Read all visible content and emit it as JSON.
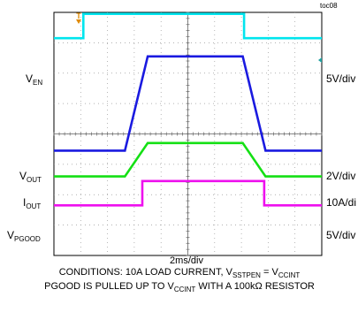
{
  "figure_tag": "toc08",
  "chart_data": {
    "type": "line",
    "title": "",
    "xlabel": "2ms/div",
    "x_divisions": 10,
    "y_divisions": 8,
    "grid": true,
    "trigger_marker": "T",
    "series": [
      {
        "name": "EN",
        "name_prefix": "V",
        "name_sub": "EN",
        "scale": "5V/div",
        "color": "#00e5ee",
        "x": [
          0,
          1.1,
          1.1,
          7.1,
          7.1,
          10
        ],
        "y": [
          7.15,
          7.15,
          7.95,
          7.95,
          7.15,
          7.15
        ]
      },
      {
        "name": "OUT",
        "name_prefix": "V",
        "name_sub": "OUT",
        "scale": "2V/div",
        "color": "#1a1ae0",
        "x": [
          0,
          2.65,
          3.5,
          7.05,
          7.9,
          10
        ],
        "y": [
          3.45,
          3.45,
          6.55,
          6.55,
          3.45,
          3.45
        ]
      },
      {
        "name": "OUT",
        "name_prefix": "I",
        "name_sub": "OUT",
        "scale": "10A/di",
        "color": "#14e014",
        "x": [
          0,
          2.65,
          3.5,
          7.05,
          7.9,
          10
        ],
        "y": [
          2.6,
          2.6,
          3.7,
          3.7,
          2.6,
          2.6
        ]
      },
      {
        "name": "PGOOD",
        "name_prefix": "V",
        "name_sub": "PGOOD",
        "scale": "5V/div",
        "color": "#ee10ee",
        "x": [
          0,
          3.3,
          3.3,
          7.85,
          7.85,
          10
        ],
        "y": [
          1.65,
          1.65,
          2.45,
          2.45,
          1.65,
          1.65
        ]
      }
    ]
  },
  "conditions": {
    "line1": {
      "text": "CONDITIONS: 10A LOAD CURRENT, V",
      "sub1": "SSTPEN",
      "mid": " = V",
      "sub2": "CCINT"
    },
    "line2": {
      "text": "PGOOD IS PULLED UP TO V",
      "sub1": "CCINT",
      "mid": " WITH A 100kΩ RESISTOR"
    }
  }
}
